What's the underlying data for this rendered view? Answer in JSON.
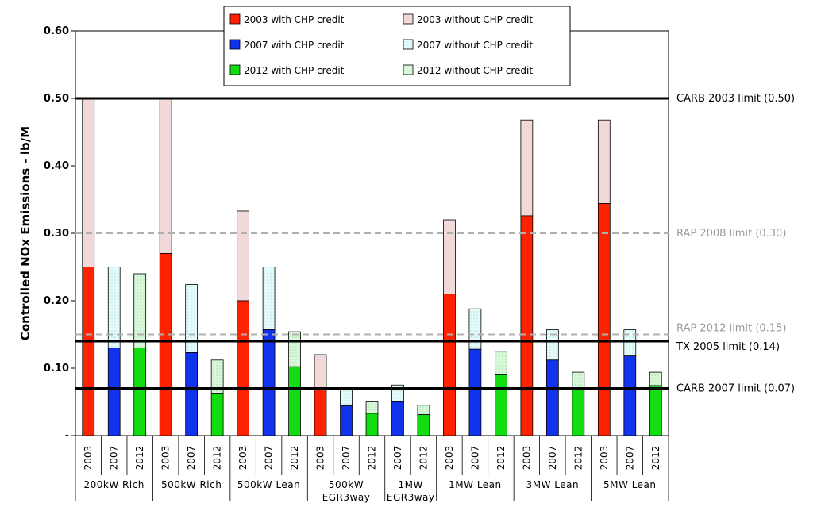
{
  "chart_data": {
    "type": "bar",
    "subtype": "stacked",
    "ylabel": "Controlled NOx Emissions - lb/M",
    "ylim": [
      0,
      0.6
    ],
    "yticks": [
      {
        "value": 0,
        "label": "-"
      },
      {
        "value": 0.1,
        "label": "0.10"
      },
      {
        "value": 0.2,
        "label": "0.20"
      },
      {
        "value": 0.3,
        "label": "0.30"
      },
      {
        "value": 0.4,
        "label": "0.40"
      },
      {
        "value": 0.5,
        "label": "0.50"
      },
      {
        "value": 0.6,
        "label": "0.60"
      }
    ],
    "grid": false,
    "legend_position": "top",
    "legend": [
      {
        "label": "2003 with CHP credit",
        "color": "#ff2200",
        "pattern": "solid"
      },
      {
        "label": "2003 without CHP credit",
        "color": "#f2d9d9",
        "pattern": "solid"
      },
      {
        "label": "2007 with CHP credit",
        "color": "#1133ee",
        "pattern": "solid"
      },
      {
        "label": "2007 without CHP credit",
        "color": "#e4fbfb",
        "pattern": "dotted"
      },
      {
        "label": "2012 with CHP credit",
        "color": "#11dd11",
        "pattern": "solid"
      },
      {
        "label": "2012 without CHP credit",
        "color": "#d9f7d9",
        "pattern": "dotted"
      }
    ],
    "groups": [
      {
        "label": "200kW Rich",
        "label_lines": [
          "200kW Rich"
        ],
        "bars": [
          {
            "year": "2003",
            "with_credit": 0.25,
            "without_credit": 0.5
          },
          {
            "year": "2007",
            "with_credit": 0.13,
            "without_credit": 0.25
          },
          {
            "year": "2012",
            "with_credit": 0.13,
            "without_credit": 0.24
          }
        ]
      },
      {
        "label": "500kW Rich",
        "label_lines": [
          "500kW Rich"
        ],
        "bars": [
          {
            "year": "2003",
            "with_credit": 0.27,
            "without_credit": 0.5
          },
          {
            "year": "2007",
            "with_credit": 0.123,
            "without_credit": 0.224
          },
          {
            "year": "2012",
            "with_credit": 0.063,
            "without_credit": 0.112
          }
        ]
      },
      {
        "label": "500kW Lean",
        "label_lines": [
          "500kW Lean"
        ],
        "bars": [
          {
            "year": "2003",
            "with_credit": 0.2,
            "without_credit": 0.333
          },
          {
            "year": "2007",
            "with_credit": 0.157,
            "without_credit": 0.25
          },
          {
            "year": "2012",
            "with_credit": 0.102,
            "without_credit": 0.154
          }
        ]
      },
      {
        "label": "500kW EGR3way",
        "label_lines": [
          "500kW",
          "EGR3way"
        ],
        "bars": [
          {
            "year": "2003",
            "with_credit": 0.07,
            "without_credit": 0.12
          },
          {
            "year": "2007",
            "with_credit": 0.044,
            "without_credit": 0.07
          },
          {
            "year": "2012",
            "with_credit": 0.033,
            "without_credit": 0.05
          }
        ]
      },
      {
        "label": "1MW EGR3way",
        "label_lines": [
          "1MW",
          "EGR3way"
        ],
        "bars": [
          {
            "year": "2007",
            "with_credit": 0.05,
            "without_credit": 0.075
          },
          {
            "year": "2012",
            "with_credit": 0.031,
            "without_credit": 0.045
          }
        ]
      },
      {
        "label": "1MW Lean",
        "label_lines": [
          "1MW Lean"
        ],
        "bars": [
          {
            "year": "2003",
            "with_credit": 0.21,
            "without_credit": 0.32
          },
          {
            "year": "2007",
            "with_credit": 0.128,
            "without_credit": 0.188
          },
          {
            "year": "2012",
            "with_credit": 0.09,
            "without_credit": 0.125
          }
        ]
      },
      {
        "label": "3MW Lean",
        "label_lines": [
          "3MW Lean"
        ],
        "bars": [
          {
            "year": "2003",
            "with_credit": 0.326,
            "without_credit": 0.468
          },
          {
            "year": "2007",
            "with_credit": 0.112,
            "without_credit": 0.157
          },
          {
            "year": "2012",
            "with_credit": 0.07,
            "without_credit": 0.094
          }
        ]
      },
      {
        "label": "5MW Lean",
        "label_lines": [
          "5MW Lean"
        ],
        "bars": [
          {
            "year": "2003",
            "with_credit": 0.344,
            "without_credit": 0.468
          },
          {
            "year": "2007",
            "with_credit": 0.118,
            "without_credit": 0.157
          },
          {
            "year": "2012",
            "with_credit": 0.074,
            "without_credit": 0.094
          }
        ]
      }
    ],
    "reference_lines": [
      {
        "label": "CARB 2003 limit (0.50)",
        "value": 0.5,
        "style": "solid",
        "color": "#000000"
      },
      {
        "label": "RAP 2008 limit (0.30)",
        "value": 0.3,
        "style": "dashed",
        "color": "#b0b0b0"
      },
      {
        "label": "RAP 2012 limit (0.15)",
        "value": 0.15,
        "style": "dashed",
        "color": "#b0b0b0"
      },
      {
        "label": "TX 2005 limit (0.14)",
        "value": 0.14,
        "style": "solid",
        "color": "#000000"
      },
      {
        "label": "CARB 2007 limit (0.07)",
        "value": 0.07,
        "style": "solid",
        "color": "#000000"
      }
    ]
  }
}
